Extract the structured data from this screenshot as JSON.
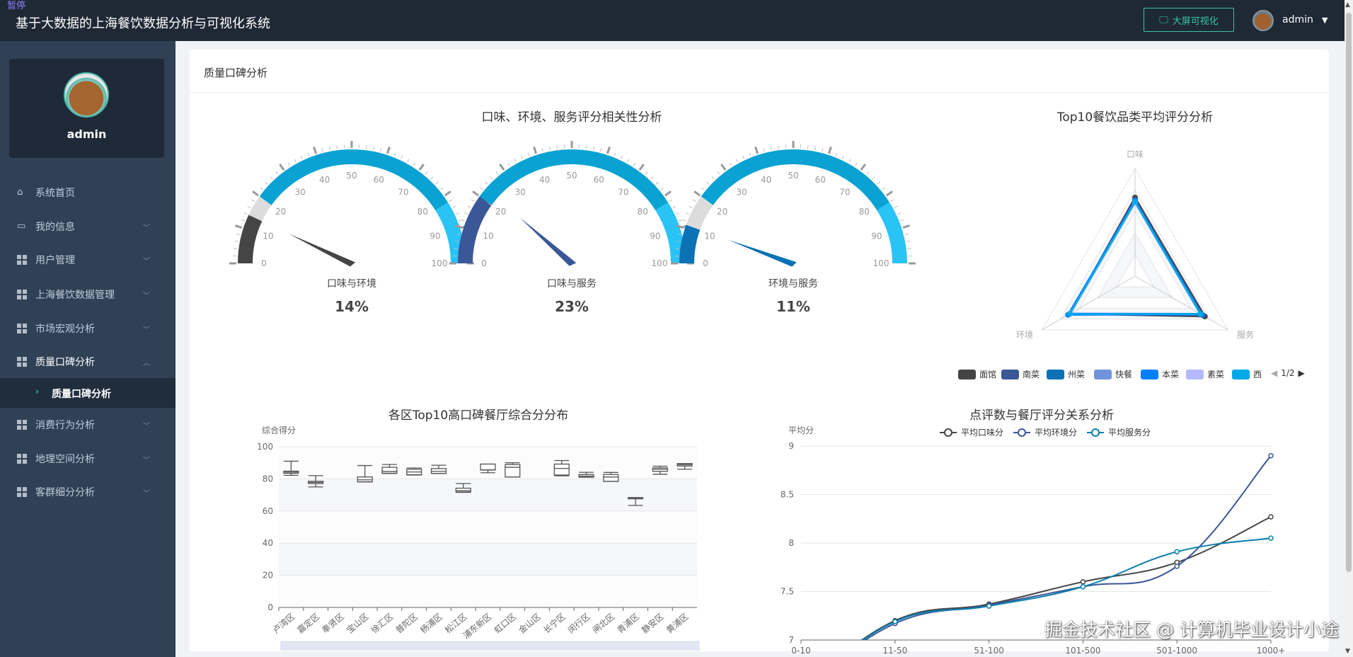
{
  "header": {
    "pause_label": "暂停",
    "title": "基于大数据的上海餐饮数据分析与可视化系统",
    "big_screen_button": "大屏可视化",
    "user": "admin"
  },
  "sidebar": {
    "profile_name": "admin",
    "items": [
      {
        "label": "系统首页",
        "icon": "home-icon",
        "has_children": false
      },
      {
        "label": "我的信息",
        "icon": "card-icon",
        "has_children": true
      },
      {
        "label": "用户管理",
        "icon": "grid-icon",
        "has_children": true
      },
      {
        "label": "上海餐饮数据管理",
        "icon": "grid-icon",
        "has_children": true
      },
      {
        "label": "市场宏观分析",
        "icon": "grid-icon",
        "has_children": true
      },
      {
        "label": "质量口碑分析",
        "icon": "grid-icon",
        "has_children": true,
        "expanded": true
      },
      {
        "label": "消费行为分析",
        "icon": "grid-icon",
        "has_children": true
      },
      {
        "label": "地理空间分析",
        "icon": "grid-icon",
        "has_children": true
      },
      {
        "label": "客群细分分析",
        "icon": "grid-icon",
        "has_children": true
      }
    ],
    "sub_item": {
      "label": "质量口碑分析",
      "active": true
    }
  },
  "card": {
    "title": "质量口碑分析"
  },
  "watermark": "掘金技术社区 @ 计算机毕业设计小途",
  "chart_data": [
    {
      "type": "gauge",
      "title": "口味、环境、服务评分相关性分析",
      "min": 0,
      "max": 100,
      "ticks": [
        "0",
        "10",
        "20",
        "30",
        "40",
        "50",
        "60",
        "70",
        "80",
        "90",
        "100"
      ],
      "band_colors": {
        "neutral": "#dcdcdc",
        "main": "#0aa2d2",
        "high": "#29c3f6"
      },
      "gauges": [
        {
          "name": "口味与环境",
          "value": 14,
          "display": "14%",
          "color": "#454545"
        },
        {
          "name": "口味与服务",
          "value": 23,
          "display": "23%",
          "color": "#3a5897"
        },
        {
          "name": "环境与服务",
          "value": 11,
          "display": "11%",
          "color": "#0a72b5"
        }
      ]
    },
    {
      "type": "radar",
      "title": "Top10餐饮品类平均评分分析",
      "indicators": [
        "口味",
        "服务",
        "环境"
      ],
      "max": 10,
      "legend": {
        "page": "1/2",
        "items": [
          "面馆",
          "南菜",
          "州菜",
          "快餐",
          "本菜",
          "素菜",
          "西餐"
        ]
      },
      "series": [
        {
          "name": "面馆",
          "values": [
            7.3,
            7.5,
            7.0
          ],
          "color": "#454545"
        },
        {
          "name": "南菜",
          "values": [
            7.1,
            7.3,
            7.0
          ],
          "color": "#3a5897"
        },
        {
          "name": "州菜",
          "values": [
            7.0,
            7.2,
            7.1
          ],
          "color": "#0a72b5"
        },
        {
          "name": "快餐",
          "values": [
            6.9,
            7.1,
            7.0
          ],
          "color": "#7094db"
        },
        {
          "name": "本菜",
          "values": [
            7.0,
            7.1,
            7.2
          ],
          "color": "#0080ff"
        },
        {
          "name": "素菜",
          "values": [
            6.8,
            7.0,
            6.9
          ],
          "color": "#b3b8ff"
        },
        {
          "name": "西餐",
          "values": [
            6.9,
            7.0,
            7.0
          ],
          "color": "#00a8e8"
        }
      ]
    },
    {
      "type": "boxplot",
      "title": "各区Top10高口碑餐厅综合分分布",
      "ylabel": "综合得分",
      "ylim": [
        0,
        100
      ],
      "yticks": [
        0,
        20,
        40,
        60,
        80,
        100
      ],
      "categories": [
        "卢湾区",
        "嘉定区",
        "奉贤区",
        "宝山区",
        "徐汇区",
        "普陀区",
        "杨浦区",
        "松江区",
        "浦东新区",
        "虹口区",
        "金山区",
        "长宁区",
        "闵行区",
        "闸北区",
        "青浦区",
        "静安区",
        "黄浦区"
      ],
      "boxes": [
        [
          82.2,
          83.5,
          84.2,
          84.8,
          91
        ],
        [
          75,
          77.1,
          77.8,
          78.5,
          82
        ],
        null,
        [
          78.1,
          78.2,
          79.4,
          81.2,
          88.3
        ],
        [
          83.3,
          83.5,
          84.6,
          87.2,
          89
        ],
        [
          82.4,
          82.6,
          84.3,
          86,
          86.8
        ],
        [
          83.3,
          83.4,
          84.7,
          86.4,
          88.5
        ],
        [
          71.6,
          71.8,
          72.6,
          74.2,
          77.1
        ],
        [
          83.8,
          85.5,
          85.6,
          89.2,
          89.2
        ],
        [
          81.2,
          81.2,
          87.2,
          88.9,
          90
        ],
        null,
        [
          81.9,
          82.4,
          86.5,
          89.2,
          91.4
        ],
        [
          81,
          81.1,
          81.7,
          82.7,
          84.1
        ],
        [
          78.4,
          78.5,
          81.2,
          82.7,
          84
        ],
        [
          63.5,
          67.6,
          67.8,
          68.3,
          68.3
        ],
        [
          82.9,
          84.7,
          86,
          86.8,
          87.9
        ],
        [
          86,
          88,
          88.8,
          89.5,
          89.6
        ]
      ]
    },
    {
      "type": "line",
      "title": "点评数与餐厅评分关系分析",
      "ylabel": "平均分",
      "ylim": [
        7,
        9
      ],
      "yticks": [
        "7",
        "7.5",
        "8",
        "8.5",
        "9"
      ],
      "smooth": true,
      "categories": [
        "0-10",
        "11-50",
        "51-100",
        "101-500",
        "501-1000",
        "1000+"
      ],
      "series": [
        {
          "name": "平均口味分",
          "values": [
            6.5,
            7.2,
            7.37,
            7.6,
            7.8,
            8.27
          ],
          "color": "#454545"
        },
        {
          "name": "平均环境分",
          "values": [
            6.5,
            7.17,
            7.36,
            7.55,
            7.76,
            8.9
          ],
          "color": "#3a5897"
        },
        {
          "name": "平均服务分",
          "values": [
            6.5,
            7.19,
            7.35,
            7.55,
            7.91,
            8.05
          ],
          "color": "#0a7fae"
        }
      ]
    }
  ]
}
